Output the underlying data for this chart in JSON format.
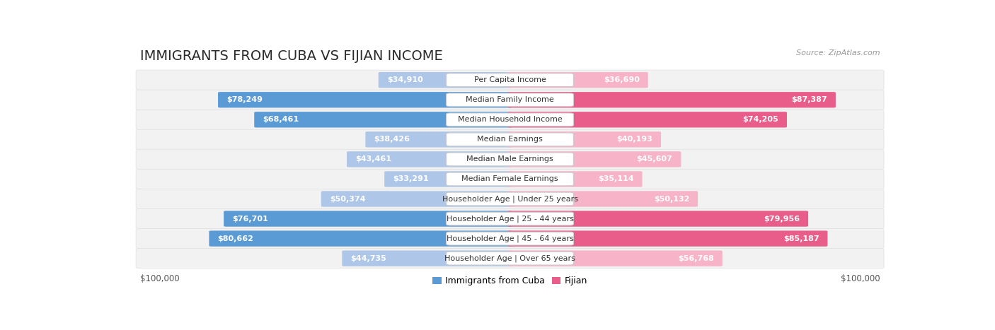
{
  "title": "IMMIGRANTS FROM CUBA VS FIJIAN INCOME",
  "source": "Source: ZipAtlas.com",
  "categories": [
    "Per Capita Income",
    "Median Family Income",
    "Median Household Income",
    "Median Earnings",
    "Median Male Earnings",
    "Median Female Earnings",
    "Householder Age | Under 25 years",
    "Householder Age | 25 - 44 years",
    "Householder Age | 45 - 64 years",
    "Householder Age | Over 65 years"
  ],
  "cuba_values": [
    34910,
    78249,
    68461,
    38426,
    43461,
    33291,
    50374,
    76701,
    80662,
    44735
  ],
  "fijian_values": [
    36690,
    87387,
    74205,
    40193,
    45607,
    35114,
    50132,
    79956,
    85187,
    56768
  ],
  "cuba_color_light": "#aec6e8",
  "cuba_color_dark": "#5b9bd5",
  "fijian_color_light": "#f7b3c8",
  "fijian_color_dark": "#e85d8a",
  "row_bg_color": "#f2f2f2",
  "row_border_color": "#e0e0e0",
  "x_max": 100000,
  "title_fontsize": 14,
  "label_fontsize": 8.0,
  "value_fontsize": 8.0,
  "legend_fontsize": 9,
  "source_fontsize": 8
}
